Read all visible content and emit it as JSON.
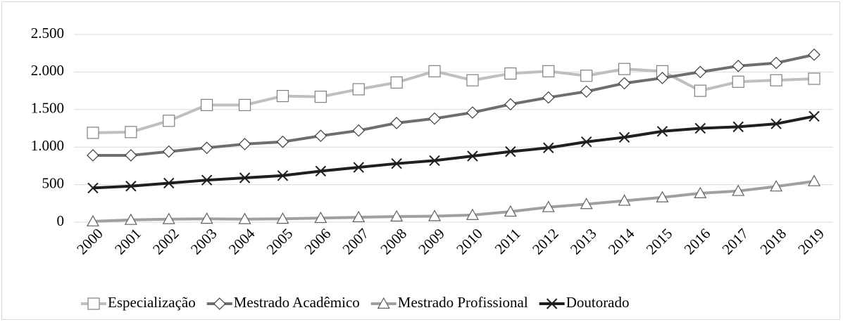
{
  "chart_data": {
    "type": "line",
    "categories": [
      "2000",
      "2001",
      "2002",
      "2003",
      "2004",
      "2005",
      "2006",
      "2007",
      "2008",
      "2009",
      "2010",
      "2011",
      "2012",
      "2013",
      "2014",
      "2015",
      "2016",
      "2017",
      "2018",
      "2019"
    ],
    "series": [
      {
        "name": "Especialização",
        "color": "#bfbfbf",
        "marker": "square",
        "values": [
          1190,
          1200,
          1350,
          1560,
          1560,
          1680,
          1670,
          1770,
          1860,
          2010,
          1890,
          1980,
          2010,
          1950,
          2040,
          2010,
          1750,
          1870,
          1890,
          1910
        ]
      },
      {
        "name": "Mestrado Acadêmico",
        "color": "#6e6e6e",
        "marker": "diamond",
        "values": [
          890,
          890,
          940,
          990,
          1040,
          1070,
          1150,
          1220,
          1320,
          1380,
          1460,
          1570,
          1660,
          1740,
          1850,
          1920,
          2000,
          2080,
          2120,
          2230
        ]
      },
      {
        "name": "Mestrado Profissional",
        "color": "#a0a0a0",
        "marker": "triangle",
        "values": [
          10,
          30,
          40,
          45,
          40,
          45,
          55,
          65,
          75,
          80,
          95,
          140,
          200,
          240,
          285,
          330,
          385,
          415,
          475,
          545
        ]
      },
      {
        "name": "Doutorado",
        "color": "#1f1f1f",
        "marker": "x",
        "values": [
          455,
          480,
          520,
          560,
          590,
          620,
          680,
          730,
          780,
          820,
          880,
          940,
          990,
          1070,
          1130,
          1210,
          1250,
          1270,
          1310,
          1410
        ]
      }
    ],
    "ylim": [
      0,
      2500
    ],
    "yticks": [
      0,
      500,
      {
        "value": 1000,
        "label": "1.000"
      },
      {
        "value": 1500,
        "label": "1.500"
      },
      {
        "value": 2000,
        "label": "2.000"
      },
      {
        "value": 2500,
        "label": "2.500"
      }
    ],
    "grid": true,
    "legend": "bottom"
  }
}
